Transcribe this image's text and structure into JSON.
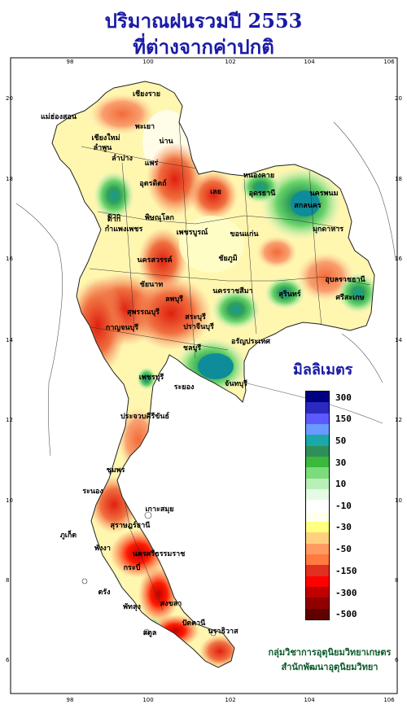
{
  "title": {
    "line1": "ปริมาณฝนรวมปี  2553",
    "line2": "ที่ต่างจากค่าปกติ"
  },
  "axes": {
    "lon_ticks": [
      "98",
      "100",
      "102",
      "104",
      "106"
    ],
    "lat_ticks": [
      "20",
      "18",
      "16",
      "14",
      "12",
      "10",
      "8",
      "6"
    ]
  },
  "legend": {
    "title": "มิลลิเมตร",
    "labels": [
      "300",
      "150",
      "50",
      "30",
      "10",
      "-10",
      "-30",
      "-50",
      "-150",
      "-300",
      "-500"
    ],
    "colors": [
      "#000080",
      "#2a2ac0",
      "#5a5aff",
      "#6a9aff",
      "#1aa8a8",
      "#2f8f5a",
      "#3cb83c",
      "#7cdc7c",
      "#b8f0b8",
      "#e4fce4",
      "#ffffff",
      "#fffff0",
      "#ffff80",
      "#ffd080",
      "#ff9a60",
      "#ff7a40",
      "#e03020",
      "#ff0000",
      "#c00000",
      "#900000",
      "#600000"
    ]
  },
  "credit": {
    "line1": "กลุ่มวิชาการอุตุนิยมวิทยาเกษตร",
    "line2": "สำนักพัฒนาอุตุนิยมวิทยา"
  },
  "map_labels": [
    "เชียงราย",
    "แม่ฮ่องสอน",
    "พะเยา",
    "เชียงใหม่",
    "ลำพูน",
    "น่าน",
    "ลำปาง",
    "แพร่",
    "อุตรดิตถ์",
    "หนองคาย",
    "อุดรธานี",
    "สกลนคร",
    "นครพนม",
    "มุกดาหาร",
    "ตาก",
    "เลย",
    "พิษณุโลก",
    "กำแพงเพชร",
    "เพชรบูรณ์",
    "ขอนแก่น",
    "นครสวรรค์",
    "ชัยภูมิ",
    "อุบลราชธานี",
    "ชัยนาท",
    "นครราชสีมา",
    "สุรินทร์",
    "กาญจนบุรี",
    "สุพรรณบุรี",
    "ลพบุรี",
    "สระบุรี",
    "ปราจีนบุรี",
    "อรัญประเทศ",
    "ชลบุรี",
    "ระยอง",
    "จันทบุรี",
    "เพชรบุรี",
    "ประจวบคีรีขันธ์",
    "ชุมพร",
    "ระนอง",
    "เกาะสมุย",
    "สุราษฎร์ธานี",
    "พังงา",
    "นครศรีธรรมราช",
    "ภูเก็ต",
    "กระบี่",
    "ตรัง",
    "พัทลุง",
    "สงขลา",
    "ปัตตานี",
    "นราธิวาส",
    "สตูล",
    "ตาก",
    "ศรีสะเกษ"
  ]
}
